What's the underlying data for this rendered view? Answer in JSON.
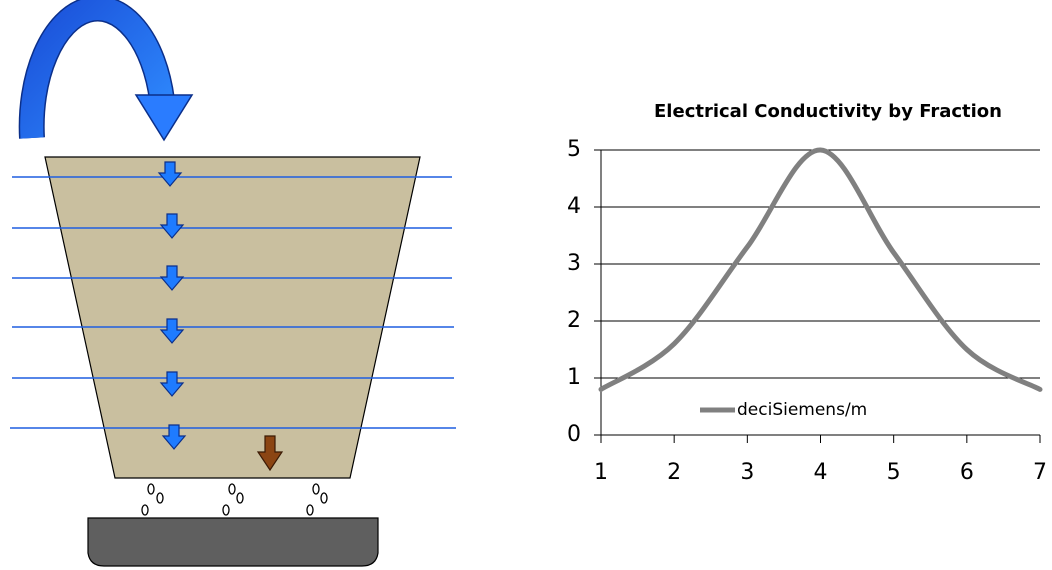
{
  "chart_data": {
    "type": "line",
    "title": "Electrical Conductivity by Fraction",
    "x": [
      1,
      2,
      3,
      4,
      5,
      6,
      7
    ],
    "series": [
      {
        "name": "deciSiemens/m",
        "color": "#808080",
        "values": [
          0.8,
          1.6,
          3.3,
          5,
          3.2,
          1.5,
          0.8
        ]
      }
    ],
    "xlim": [
      1,
      7
    ],
    "xticks": [
      1,
      2,
      3,
      4,
      5,
      6,
      7
    ],
    "ylim": [
      0,
      5
    ],
    "yticks": [
      0,
      1,
      2,
      3,
      4,
      5
    ],
    "grid": true,
    "legend": "bottom-left"
  }
}
